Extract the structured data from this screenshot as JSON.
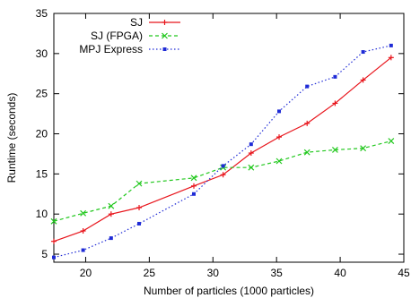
{
  "chart_data": {
    "type": "line",
    "title": "",
    "xlabel": "Number of particles (1000 particles)",
    "ylabel": "Runtime (seconds)",
    "xlim": [
      17.5,
      45
    ],
    "ylim": [
      4,
      35
    ],
    "xticks": [
      20,
      25,
      30,
      35,
      40,
      45
    ],
    "yticks": [
      5,
      10,
      15,
      20,
      25,
      30,
      35
    ],
    "xtick_labels": [
      "20",
      "25",
      "30",
      "35",
      "40",
      "45"
    ],
    "ytick_labels": [
      "5",
      "10",
      "15",
      "20",
      "25",
      "30",
      "35"
    ],
    "grid": false,
    "legend_position": "top-left",
    "series": [
      {
        "name": "SJ",
        "color": "#e8141b",
        "line_style": "solid",
        "marker": "plus",
        "x": [
          17.5,
          19.8,
          22.0,
          24.2,
          28.5,
          30.8,
          33.0,
          35.2,
          37.4,
          39.6,
          41.8,
          44.0
        ],
        "y": [
          6.6,
          7.9,
          10.0,
          10.8,
          13.5,
          14.9,
          17.6,
          19.6,
          21.3,
          23.8,
          26.7,
          29.5
        ]
      },
      {
        "name": "SJ (FPGA)",
        "color": "#22c81e",
        "line_style": "dashed",
        "marker": "x",
        "x": [
          17.5,
          19.8,
          22.0,
          24.2,
          28.5,
          30.8,
          33.0,
          35.2,
          37.4,
          39.6,
          41.8,
          44.0
        ],
        "y": [
          9.1,
          10.1,
          11.0,
          13.8,
          14.5,
          15.8,
          15.8,
          16.6,
          17.7,
          18.0,
          18.2,
          19.1
        ]
      },
      {
        "name": "MPJ Express",
        "color": "#1f2bd6",
        "line_style": "dotted",
        "marker": "square",
        "x": [
          17.5,
          19.8,
          22.0,
          24.2,
          28.5,
          30.8,
          33.0,
          35.2,
          37.4,
          39.6,
          41.8,
          44.0
        ],
        "y": [
          4.6,
          5.5,
          7.0,
          8.8,
          12.5,
          16.0,
          18.7,
          22.8,
          25.9,
          27.1,
          30.2,
          31.0
        ]
      }
    ]
  }
}
